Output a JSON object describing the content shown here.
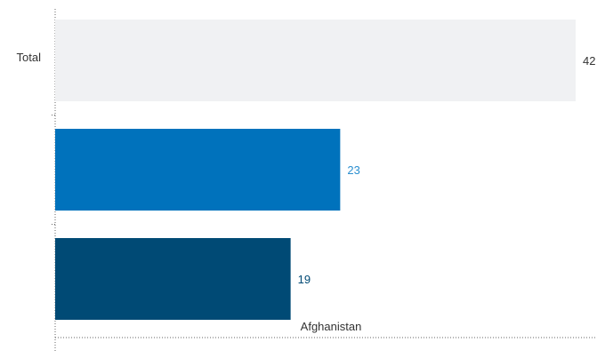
{
  "chart_data": {
    "type": "bar",
    "orientation": "horizontal",
    "y_tick_labels": [
      "Total",
      "",
      ""
    ],
    "bars": [
      {
        "value": 42,
        "color": "#f0f1f3",
        "label_color": "#333333"
      },
      {
        "value": 23,
        "color": "#0072bc",
        "label_color": "#2b8fd0"
      },
      {
        "value": 19,
        "color": "#004a75",
        "label_color": "#004a75"
      }
    ],
    "data_labels": [
      "42",
      "23",
      "19"
    ],
    "xlabel": "Afghanistan",
    "xlim": [
      0,
      42
    ],
    "grid": false,
    "axis_color": "#666666",
    "axis_style": "dotted"
  }
}
